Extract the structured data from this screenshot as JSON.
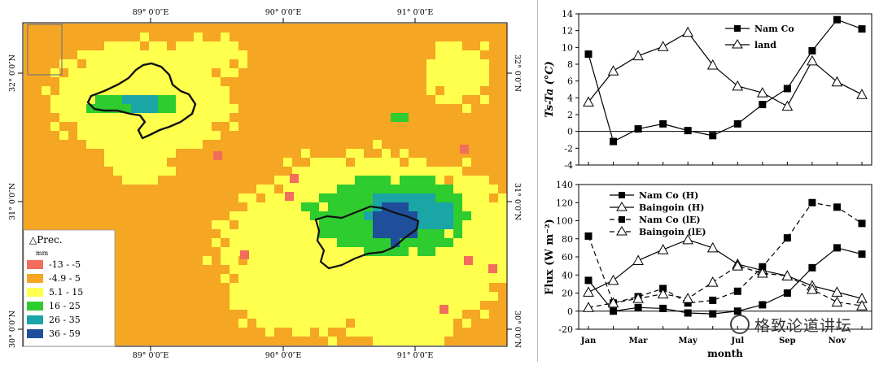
{
  "map": {
    "top_lon_labels": [
      "89° 0′0″E",
      "90° 0′0″E",
      "91° 0′0″E"
    ],
    "bottom_lon_labels": [
      "89° 0′0″E",
      "90° 0′0″E",
      "91° 0′0″E"
    ],
    "left_lat_labels": [
      "32° 0′0″N",
      "31° 0′0″N",
      "30° 0′0″N"
    ],
    "right_lat_labels": [
      "32° 0′0″N",
      "31° 0′0″N",
      "30° 0′0″N"
    ],
    "legend": {
      "title": "△Prec.",
      "unit": "mm",
      "classes": [
        {
          "label": "-13 - -5",
          "color": "#f26d5b"
        },
        {
          "label": "-4.9 - 5",
          "color": "#f5a623"
        },
        {
          "label": "5.1 - 15",
          "color": "#ffff4d"
        },
        {
          "label": "16 - 25",
          "color": "#2ecc2e"
        },
        {
          "label": "26 - 35",
          "color": "#1aa6a6"
        },
        {
          "label": "36 - 59",
          "color": "#1f4e9a"
        }
      ]
    }
  },
  "chart_data": [
    {
      "type": "line",
      "ylabel": "Ts-Ta (°C)",
      "ylim": [
        -4,
        14
      ],
      "yticks": [
        -4,
        -2,
        0,
        2,
        4,
        6,
        8,
        10,
        12,
        14
      ],
      "x": [
        1,
        2,
        3,
        4,
        5,
        6,
        7,
        8,
        9,
        10,
        11,
        12
      ],
      "series": [
        {
          "name": "Nam Co",
          "marker": "square",
          "dash": "solid",
          "values": [
            9.2,
            -1.2,
            0.3,
            0.9,
            0.1,
            -0.5,
            0.9,
            3.2,
            5.1,
            9.6,
            13.3,
            12.2
          ]
        },
        {
          "name": "land",
          "marker": "triangle",
          "dash": "solid",
          "values": [
            3.5,
            7.2,
            9.0,
            10.1,
            11.8,
            7.9,
            5.4,
            4.6,
            3.0,
            8.4,
            5.9,
            4.4
          ]
        }
      ],
      "legend_position": "top-right"
    },
    {
      "type": "line",
      "ylabel": "Flux (W m⁻²)",
      "xlabel": "month",
      "ylim": [
        -20,
        140
      ],
      "yticks": [
        -20,
        0,
        20,
        40,
        60,
        80,
        100,
        120,
        140
      ],
      "x": [
        1,
        2,
        3,
        4,
        5,
        6,
        7,
        8,
        9,
        10,
        11,
        12
      ],
      "xtick_labels": [
        "Jan",
        "Mar",
        "May",
        "Jul",
        "Sep",
        "Nov"
      ],
      "series": [
        {
          "name": "Nam Co  (H)",
          "marker": "square",
          "dash": "solid",
          "values": [
            34,
            0,
            4,
            3,
            -2,
            -3,
            0,
            7,
            20,
            48,
            70,
            63
          ]
        },
        {
          "name": "Baingoin (H)",
          "marker": "triangle",
          "dash": "solid",
          "values": [
            21,
            34,
            56,
            68,
            79,
            70,
            52,
            45,
            39,
            28,
            21,
            14
          ]
        },
        {
          "name": "Nam Co  (lE)",
          "marker": "square",
          "dash": "dashed",
          "values": [
            83,
            9,
            16,
            25,
            9,
            12,
            22,
            49,
            81,
            120,
            115,
            97
          ]
        },
        {
          "name": "Baingoin (lE)",
          "marker": "triangle",
          "dash": "dashed",
          "values": [
            4,
            9,
            14,
            19,
            14,
            32,
            50,
            42,
            39,
            24,
            10,
            6
          ]
        }
      ],
      "legend_position": "top-left"
    }
  ],
  "watermark": "格致论道讲坛"
}
